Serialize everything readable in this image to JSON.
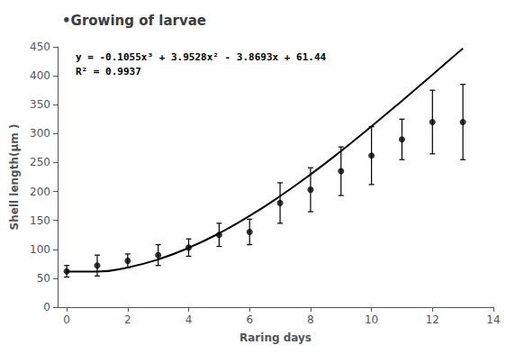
{
  "chart_data": {
    "type": "scatter",
    "title": "•Growing of larvae",
    "xlabel": "Raring days",
    "ylabel": "Shell length(μm )",
    "xlim": [
      -0.3,
      14
    ],
    "ylim": [
      0,
      450
    ],
    "xticks": [
      0,
      2,
      4,
      6,
      8,
      10,
      12,
      14
    ],
    "yticks": [
      0,
      50,
      100,
      150,
      200,
      250,
      300,
      350,
      400,
      450
    ],
    "grid": false,
    "x": [
      0,
      1,
      2,
      3,
      4,
      5,
      6,
      7,
      8,
      9,
      10,
      11,
      12,
      13
    ],
    "series": [
      {
        "type": "line",
        "color": "#000000",
        "values": [
          61.44,
          61.418,
          68.6686,
          82.5588,
          102.4556,
          127.726,
          157.737,
          191.8556,
          229.4488,
          269.8836,
          312.527,
          356.746,
          401.9076,
          447.3788
        ]
      },
      {
        "type": "scatter",
        "color": "#000000",
        "marker": "circle",
        "values": [
          62,
          72,
          80,
          90,
          103,
          125,
          130,
          180,
          203,
          235,
          262,
          290,
          320,
          320
        ],
        "y_err": [
          10,
          18,
          12,
          18,
          15,
          20,
          22,
          35,
          38,
          42,
          50,
          35,
          55,
          65
        ]
      }
    ],
    "annotations": [
      "y = -0.1055x³ + 3.9528x² - 3.8693x + 61.44",
      "R² = 0.9937"
    ]
  }
}
